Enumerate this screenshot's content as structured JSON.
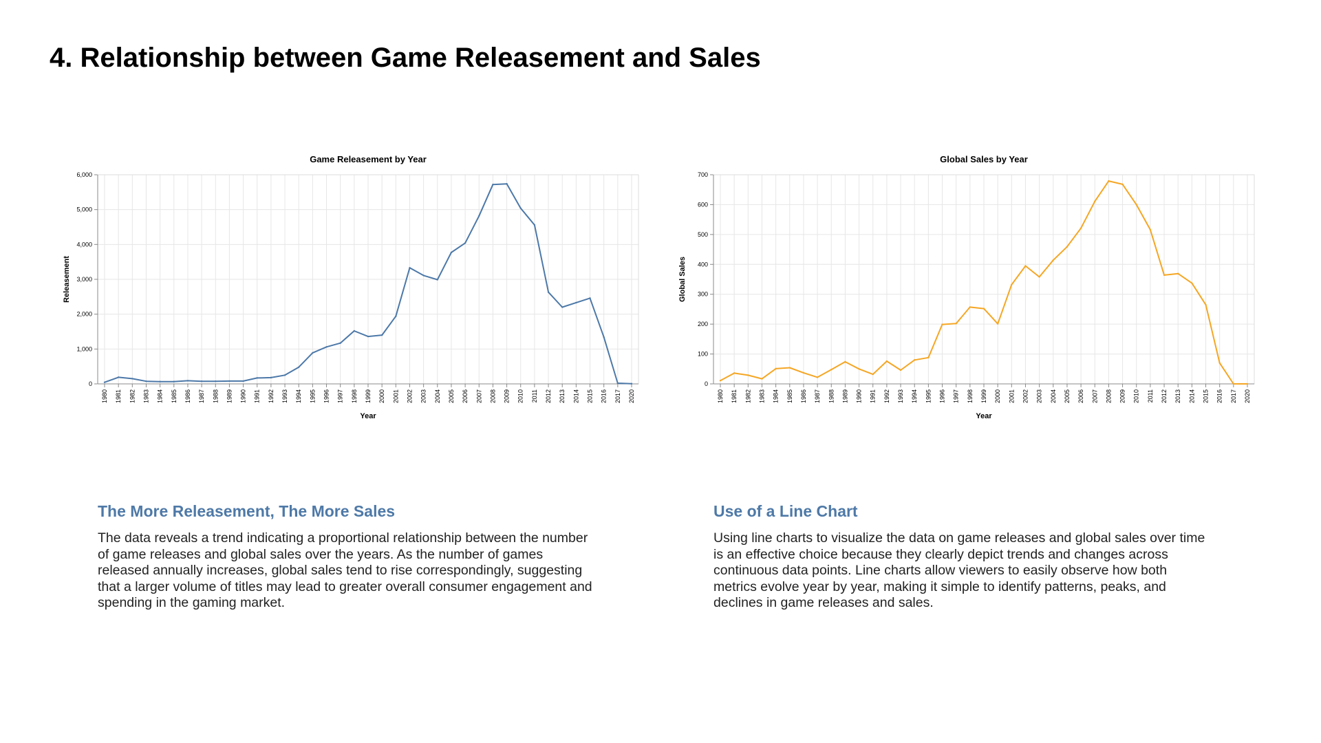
{
  "page": {
    "title": "4. Relationship between Game Releasement and Sales"
  },
  "sections": [
    {
      "heading": "The More Releasement, The More Sales",
      "body": "The data reveals a trend indicating a proportional relationship between the number of game releases and global sales over the years. As the number of games released annually increases, global sales tend to rise correspondingly, suggesting that a larger volume of titles may lead to greater overall consumer engagement and spending in the gaming market."
    },
    {
      "heading": "Use of a Line Chart",
      "body": "Using line charts to visualize the data on game releases and global sales over time is an effective choice because they clearly depict trends and changes across continuous data points. Line charts allow viewers to easily observe how both metrics evolve year by year, making it simple to identify patterns, peaks, and declines in game releases and sales."
    }
  ],
  "colors": {
    "accent": "#4e79a7",
    "series_left": "#4c78a8",
    "series_right": "#f5a623",
    "grid": "#e6e6e6",
    "axis": "#888888"
  },
  "chart_data": [
    {
      "type": "line",
      "title": "Game Releasement by Year",
      "xlabel": "Year",
      "ylabel": "Releasement",
      "ylim": [
        0,
        6000
      ],
      "yticks": [
        0,
        1000,
        2000,
        3000,
        4000,
        5000,
        6000
      ],
      "grid": true,
      "categories": [
        "1980",
        "1981",
        "1982",
        "1983",
        "1984",
        "1985",
        "1986",
        "1987",
        "1988",
        "1989",
        "1990",
        "1991",
        "1992",
        "1993",
        "1994",
        "1995",
        "1996",
        "1997",
        "1998",
        "1999",
        "2000",
        "2001",
        "2002",
        "2003",
        "2004",
        "2005",
        "2006",
        "2007",
        "2008",
        "2009",
        "2010",
        "2011",
        "2012",
        "2013",
        "2014",
        "2015",
        "2016",
        "2017",
        "2020"
      ],
      "values": [
        45,
        190,
        150,
        75,
        65,
        65,
        90,
        75,
        75,
        80,
        80,
        170,
        180,
        250,
        480,
        890,
        1060,
        1170,
        1520,
        1360,
        1400,
        1940,
        3330,
        3110,
        2990,
        3770,
        4040,
        4820,
        5720,
        5740,
        5040,
        4560,
        2630,
        2200,
        2330,
        2460,
        1340,
        20,
        5
      ]
    },
    {
      "type": "line",
      "title": "Global Sales by Year",
      "xlabel": "Year",
      "ylabel": "Global Sales",
      "ylim": [
        0,
        700
      ],
      "yticks": [
        0,
        100,
        200,
        300,
        400,
        500,
        600,
        700
      ],
      "grid": true,
      "categories": [
        "1980",
        "1981",
        "1982",
        "1983",
        "1984",
        "1985",
        "1986",
        "1987",
        "1988",
        "1989",
        "1990",
        "1991",
        "1992",
        "1993",
        "1994",
        "1995",
        "1996",
        "1997",
        "1998",
        "1999",
        "2000",
        "2001",
        "2002",
        "2003",
        "2004",
        "2005",
        "2006",
        "2007",
        "2008",
        "2009",
        "2010",
        "2011",
        "2012",
        "2013",
        "2014",
        "2015",
        "2016",
        "2017",
        "2020"
      ],
      "values": [
        11,
        36,
        29,
        17,
        51,
        54,
        37,
        22,
        48,
        74,
        50,
        32,
        76,
        46,
        80,
        88,
        199,
        202,
        257,
        252,
        201,
        332,
        395,
        358,
        414,
        459,
        521,
        611,
        679,
        668,
        600,
        516,
        364,
        369,
        337,
        265,
        70,
        0,
        0
      ]
    }
  ]
}
